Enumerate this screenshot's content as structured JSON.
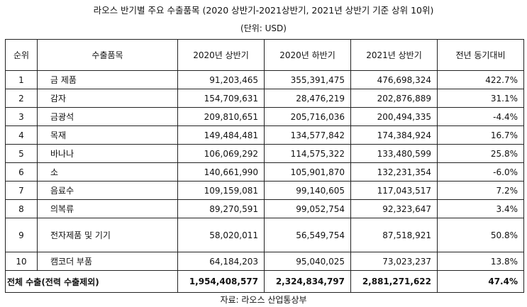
{
  "title": "라오스 반기별 주요 수출품목 (2020 상반기-2021상반기, 2021년 상반기 기준 상위 10위)",
  "unit": "(단위: USD)",
  "source": "자료: 라오스 산업통상부",
  "table": {
    "headers": [
      "순위",
      "수출품목",
      "2020년 상반기",
      "2020년 하반기",
      "2021년 상반기",
      "전년 동기대비"
    ],
    "rows": [
      {
        "rank": "1",
        "item": "금 제품",
        "h1_2020": "91,203,465",
        "h2_2020": "355,391,475",
        "h1_2021": "476,698,324",
        "yoy": "422.7%"
      },
      {
        "rank": "2",
        "item": "감자",
        "h1_2020": "154,709,631",
        "h2_2020": "28,476,219",
        "h1_2021": "202,876,889",
        "yoy": "31.1%"
      },
      {
        "rank": "3",
        "item": "금광석",
        "h1_2020": "209,810,651",
        "h2_2020": "205,716,036",
        "h1_2021": "200,494,335",
        "yoy": "-4.4%"
      },
      {
        "rank": "4",
        "item": "목재",
        "h1_2020": "149,484,481",
        "h2_2020": "134,577,842",
        "h1_2021": "174,384,924",
        "yoy": "16.7%"
      },
      {
        "rank": "5",
        "item": "바나나",
        "h1_2020": "106,069,292",
        "h2_2020": "114,575,322",
        "h1_2021": "133,480,599",
        "yoy": "25.8%"
      },
      {
        "rank": "6",
        "item": "소",
        "h1_2020": "140,661,990",
        "h2_2020": "105,901,870",
        "h1_2021": "132,231,354",
        "yoy": "-6.0%"
      },
      {
        "rank": "7",
        "item": "음료수",
        "h1_2020": "109,159,081",
        "h2_2020": "99,140,605",
        "h1_2021": "117,043,517",
        "yoy": "7.2%"
      },
      {
        "rank": "8",
        "item": "의복류",
        "h1_2020": "89,270,591",
        "h2_2020": "99,052,754",
        "h1_2021": "92,323,647",
        "yoy": "3.4%"
      },
      {
        "rank": "9",
        "item": "전자제품 및 기기",
        "h1_2020": "58,020,011",
        "h2_2020": "56,549,754",
        "h1_2021": "87,518,921",
        "yoy": "50.8%"
      },
      {
        "rank": "10",
        "item": "캠코더 부품",
        "h1_2020": "64,184,203",
        "h2_2020": "95,040,025",
        "h1_2021": "73,023,237",
        "yoy": "13.8%"
      }
    ],
    "total": {
      "label": "전체 수출(전력 수출제외)",
      "h1_2020": "1,954,408,577",
      "h2_2020": "2,324,834,797",
      "h1_2021": "2,881,271,622",
      "yoy": "47.4%"
    }
  }
}
